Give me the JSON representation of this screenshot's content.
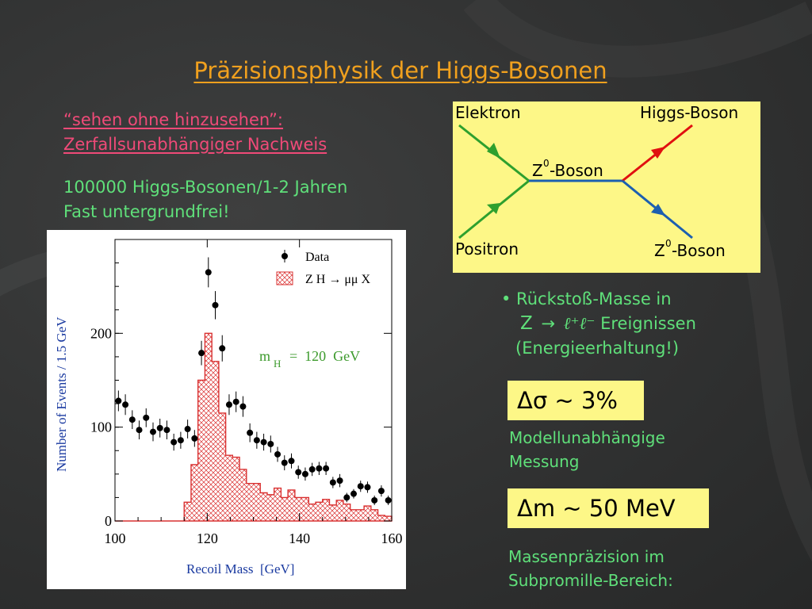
{
  "slide": {
    "title": "Präzisionsphysik der Higgs-Bosonen",
    "subtitle_line1": "“sehen ohne hinzusehen”:",
    "subtitle_line2": "Zerfallsunabhängiger Nachweis",
    "stats_line1": "100000 Higgs-Bosonen/1-2 Jahren",
    "stats_line2": "Fast untergrundfrei!"
  },
  "diagram": {
    "electron_label": "Elektron",
    "positron_label": "Positron",
    "higgs_label": "Higgs-Boson",
    "z_boson_label": "-Boson",
    "z_prefix": "Z",
    "z_sup": "0"
  },
  "bullet": {
    "line1": "• Rückstoß-Masse in",
    "line2_prefix": "Z",
    "line2_arrow": "→",
    "line2_leptons": "ℓ⁺ℓ⁻",
    "line2_suffix": "Ereignissen",
    "line3": "(Energieerhaltung!)"
  },
  "results": {
    "sigma_box": "Δσ ~ 3%",
    "sigma_note_line1": "Modellunabhängige",
    "sigma_note_line2": "Messung",
    "mass_box": "Δm ~ 50 MeV",
    "mass_note_line1": "Massenpräzision im",
    "mass_note_line2": "Subpromille-Bereich:"
  },
  "colors": {
    "title": "#f0a01e",
    "subtitle": "#f04a78",
    "text_green": "#5fe07a",
    "box_yellow": "#fdf787",
    "electron_line": "#2ea02e",
    "higgs_line": "#e01010",
    "z_line": "#1c5fb0",
    "hist_red": "#d93030",
    "mass_label_green": "#3c9a2c",
    "axis_label_blue": "#1a3aa0"
  },
  "chart_data": {
    "type": "scatter",
    "xlabel": "Recoil Mass  [GeV]",
    "ylabel": "Number of Events / 1.5 GeV",
    "xlim": [
      100,
      160
    ],
    "ylim": [
      0,
      300
    ],
    "xticks": [
      "100",
      "120",
      "140",
      "160"
    ],
    "yticks": [
      "0",
      "100",
      "200"
    ],
    "annotation_m": "m",
    "annotation_sub": "H",
    "annotation_value": "=  120  GeV",
    "legend_placement": "top-right",
    "series": [
      {
        "name": "Data",
        "kind": "points-with-errors",
        "x": [
          100.75,
          102.25,
          103.75,
          105.25,
          106.75,
          108.25,
          109.75,
          111.25,
          112.75,
          114.25,
          115.75,
          117.25,
          118.75,
          120.25,
          121.75,
          123.25,
          124.75,
          126.25,
          127.75,
          129.25,
          130.75,
          132.25,
          133.75,
          135.25,
          136.75,
          138.25,
          139.75,
          141.25,
          142.75,
          144.25,
          145.75,
          147.25,
          148.75,
          150.25,
          151.75,
          153.25,
          154.75,
          156.25,
          157.75,
          159.25
        ],
        "y": [
          128,
          124,
          108,
          97,
          110,
          95,
          99,
          97,
          84,
          86,
          98,
          88,
          179,
          265,
          230,
          184,
          124,
          127,
          122,
          94,
          86,
          84,
          82,
          71,
          62,
          64,
          52,
          50,
          55,
          56,
          56,
          41,
          43,
          25,
          29,
          37,
          36,
          22,
          32,
          22
        ],
        "errors": [
          11,
          11,
          10,
          10,
          10,
          10,
          10,
          10,
          9,
          9,
          10,
          9,
          13,
          16,
          15,
          14,
          11,
          11,
          11,
          10,
          9,
          9,
          9,
          8,
          8,
          8,
          7,
          7,
          7,
          7,
          7,
          6,
          7,
          5,
          5,
          6,
          6,
          5,
          6,
          5
        ]
      },
      {
        "name": "Z H → μμ X",
        "kind": "hatched-histogram",
        "bin_edges": [
          100,
          115,
          116.5,
          118,
          119.5,
          121,
          122.5,
          124,
          125.5,
          127,
          128.5,
          130,
          131.5,
          133,
          134.5,
          136,
          137.5,
          139,
          140.5,
          142,
          143.5,
          145,
          146.5,
          148,
          149.5,
          151,
          152.5,
          154,
          155.5,
          157,
          158.5,
          160
        ],
        "values": [
          0,
          20,
          60,
          150,
          200,
          170,
          115,
          70,
          68,
          55,
          40,
          40,
          30,
          28,
          35,
          25,
          33,
          25,
          25,
          18,
          20,
          23,
          17,
          22,
          18,
          12,
          12,
          16,
          12,
          6,
          5
        ]
      }
    ]
  }
}
